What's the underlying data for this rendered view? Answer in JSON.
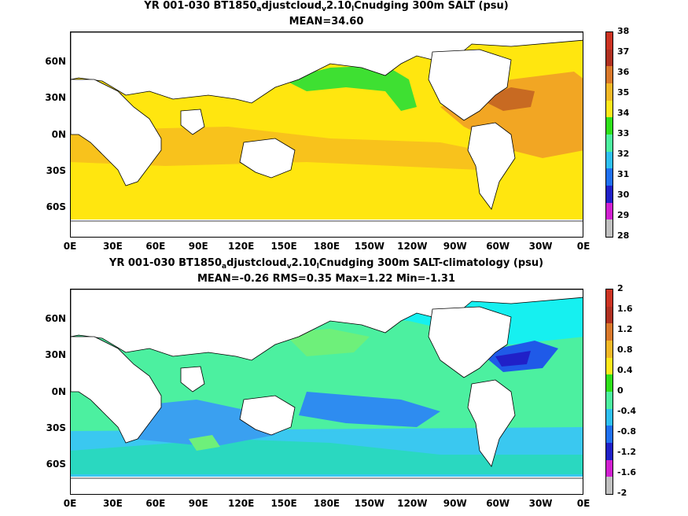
{
  "top": {
    "title_pre": "YR 001-030 BT1850",
    "title_sub1": "a",
    "title_mid1": "djustcloud",
    "title_sub2": "v",
    "title_mid2": "2.10",
    "title_sub3": "l",
    "title_post": "Cnudging 300m SALT (psu)",
    "stats": "MEAN=34.60",
    "colorbar_labels": [
      "38",
      "37",
      "36",
      "35",
      "34",
      "33",
      "32",
      "31",
      "30",
      "29",
      "28"
    ],
    "colorbar_colors": [
      "#cc3322",
      "#b03020",
      "#d9782a",
      "#f2b826",
      "#ffe81a",
      "#2ee01a",
      "#4cf0a0",
      "#2ec0f0",
      "#1f70f0",
      "#2020c8",
      "#d020d0",
      "#c0c0c0"
    ]
  },
  "bottom": {
    "title_pre": "YR 001-030 BT1850",
    "title_sub1": "a",
    "title_mid1": "djustcloud",
    "title_sub2": "v",
    "title_mid2": "2.10",
    "title_sub3": "l",
    "title_post": "Cnudging 300m SALT-climatology (psu)",
    "stats": "MEAN=-0.26   RMS=0.35   Max=1.22   Min=-1.31",
    "colorbar_labels": [
      "2",
      "1.6",
      "1.2",
      "0.8",
      "0.4",
      "0",
      "-0.4",
      "-0.8",
      "-1.2",
      "-1.6",
      "-2"
    ],
    "colorbar_colors": [
      "#cc3322",
      "#b03020",
      "#d9782a",
      "#f2b826",
      "#ffe81a",
      "#2ee01a",
      "#4cf0a0",
      "#2ec0f0",
      "#1f70f0",
      "#2020c8",
      "#d020d0",
      "#c0c0c0"
    ]
  },
  "axes": {
    "lat_labels": [
      "60N",
      "30N",
      "0N",
      "30S",
      "60S"
    ],
    "lon_labels": [
      "0E",
      "30E",
      "60E",
      "90E",
      "120E",
      "150E",
      "180E",
      "150W",
      "120W",
      "90W",
      "60W",
      "30W",
      "0E"
    ]
  }
}
